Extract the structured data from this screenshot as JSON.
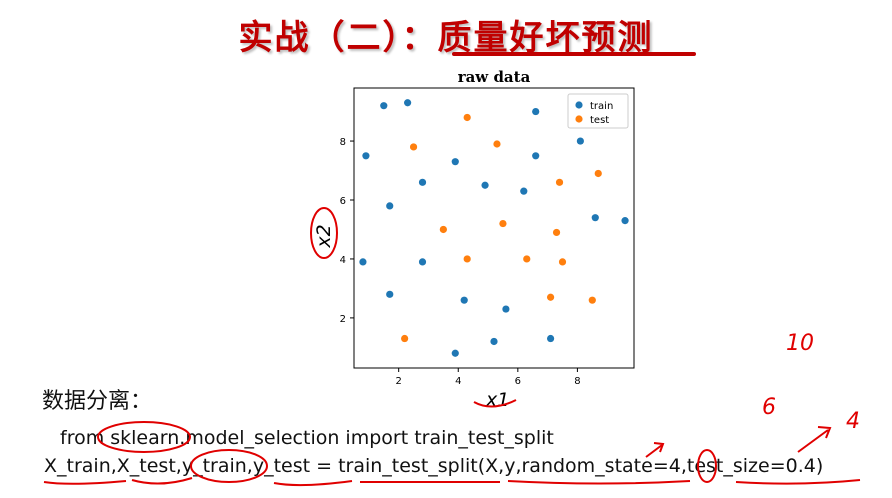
{
  "slide": {
    "title_prefix": "实战（二）：",
    "title_highlight": "质量好坏预测"
  },
  "section": {
    "label": "数据分离："
  },
  "code": {
    "line1": "from sklearn.model_selection import train_test_split",
    "line2": "X_train,X_test,y_train,y_test = train_test_split(X,y,random_state=4,test_size=0.4)"
  },
  "annotations": {
    "note_10": "10",
    "note_6": "6",
    "note_4": "4"
  },
  "colors": {
    "title": "#c00000",
    "train": "#1f77b4",
    "test": "#ff7f0e",
    "ink": "#e00000"
  },
  "chart_data": {
    "type": "scatter",
    "title": "raw data",
    "xlabel": "x1",
    "ylabel": "x2",
    "xlim": [
      0.5,
      9.9
    ],
    "ylim": [
      0.3,
      9.8
    ],
    "xticks": [
      2,
      4,
      6,
      8
    ],
    "yticks": [
      2,
      4,
      6,
      8
    ],
    "legend": "top-right",
    "grid": false,
    "series": [
      {
        "name": "train",
        "color": "#1f77b4",
        "points": [
          [
            1.5,
            9.2
          ],
          [
            2.3,
            9.3
          ],
          [
            0.9,
            7.5
          ],
          [
            1.7,
            5.8
          ],
          [
            2.8,
            6.6
          ],
          [
            3.9,
            7.3
          ],
          [
            4.9,
            6.5
          ],
          [
            0.8,
            3.9
          ],
          [
            2.8,
            3.9
          ],
          [
            1.7,
            2.8
          ],
          [
            4.2,
            2.6
          ],
          [
            5.6,
            2.3
          ],
          [
            3.9,
            0.8
          ],
          [
            5.2,
            1.2
          ],
          [
            7.1,
            1.3
          ],
          [
            6.6,
            9.0
          ],
          [
            6.6,
            7.5
          ],
          [
            6.2,
            6.3
          ],
          [
            8.1,
            8.0
          ],
          [
            8.6,
            5.4
          ],
          [
            9.6,
            5.3
          ]
        ]
      },
      {
        "name": "test",
        "color": "#ff7f0e",
        "points": [
          [
            4.3,
            8.8
          ],
          [
            5.3,
            7.9
          ],
          [
            2.5,
            7.8
          ],
          [
            7.4,
            6.6
          ],
          [
            8.7,
            6.9
          ],
          [
            3.5,
            5.0
          ],
          [
            5.5,
            5.2
          ],
          [
            7.3,
            4.9
          ],
          [
            4.3,
            4.0
          ],
          [
            6.3,
            4.0
          ],
          [
            7.5,
            3.9
          ],
          [
            7.1,
            2.7
          ],
          [
            8.5,
            2.6
          ],
          [
            2.2,
            1.3
          ]
        ]
      }
    ]
  }
}
